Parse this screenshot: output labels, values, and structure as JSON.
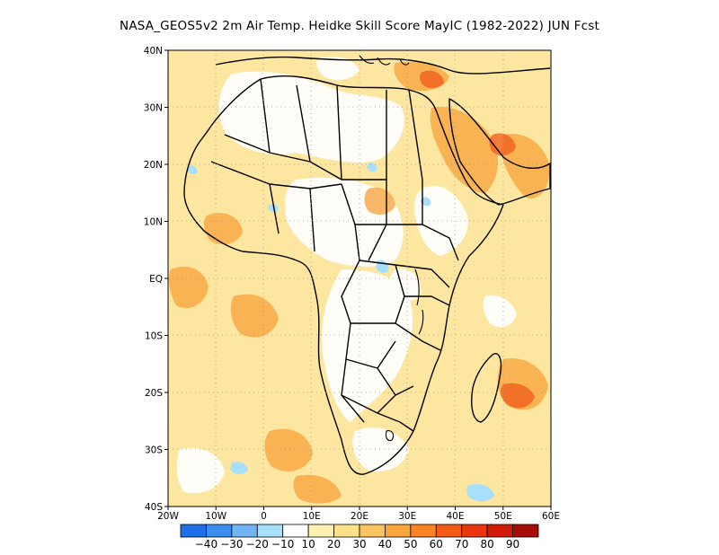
{
  "title": "NASA_GEOS5v2 2m Air Temp. Heidke Skill Score MayIC (1982-2022) JUN Fcst",
  "map": {
    "lon_range": [
      -20,
      60
    ],
    "lat_range": [
      -40,
      40
    ],
    "lat_ticks": [
      {
        "value": 40,
        "label": "40N"
      },
      {
        "value": 30,
        "label": "30N"
      },
      {
        "value": 20,
        "label": "20N"
      },
      {
        "value": 10,
        "label": "10N"
      },
      {
        "value": 0,
        "label": "EQ"
      },
      {
        "value": -10,
        "label": "10S"
      },
      {
        "value": -20,
        "label": "20S"
      },
      {
        "value": -30,
        "label": "30S"
      },
      {
        "value": -40,
        "label": "40S"
      }
    ],
    "lon_ticks": [
      {
        "value": -20,
        "label": "20W"
      },
      {
        "value": -10,
        "label": "10W"
      },
      {
        "value": 0,
        "label": "0"
      },
      {
        "value": 10,
        "label": "10E"
      },
      {
        "value": 20,
        "label": "20E"
      },
      {
        "value": 30,
        "label": "30E"
      },
      {
        "value": 40,
        "label": "40E"
      },
      {
        "value": 50,
        "label": "50E"
      },
      {
        "value": 60,
        "label": "60E"
      }
    ],
    "grid": true
  },
  "colorbar": {
    "colors": [
      "#1f6fe8",
      "#3c8ef0",
      "#72b3f5",
      "#a8e0fb",
      "#ffffff",
      "#fff2b0",
      "#fde08a",
      "#fcc461",
      "#fba63a",
      "#f98423",
      "#f45c16",
      "#e9360e",
      "#d11a08",
      "#a80c06"
    ],
    "labels": [
      "-40",
      "-30",
      "-20",
      "-10",
      "10",
      "20",
      "30",
      "40",
      "50",
      "60",
      "70",
      "80",
      "90"
    ]
  }
}
